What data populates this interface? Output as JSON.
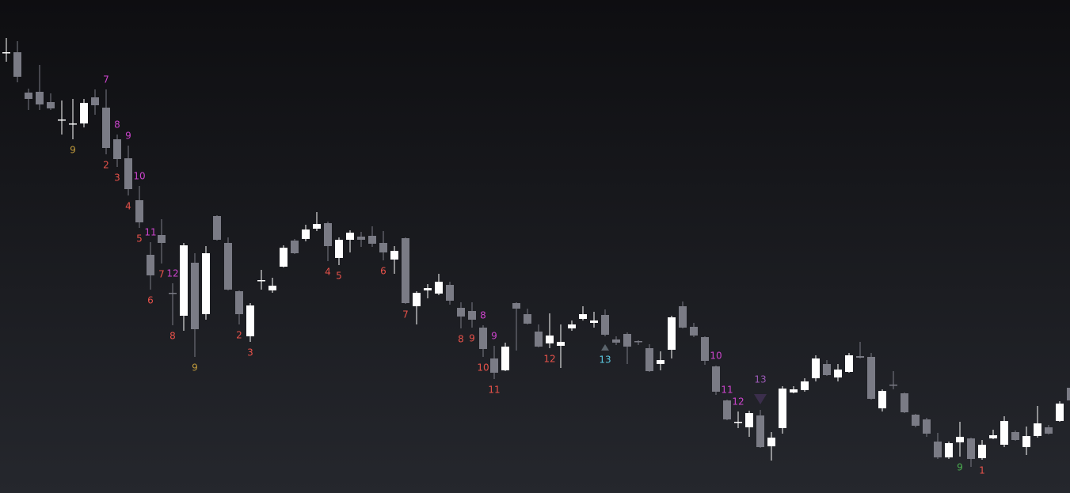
{
  "chart_data": {
    "type": "candlestick",
    "up_color": "#ffffff",
    "down_color": "#7a7b85",
    "ylim": [
      0,
      623
    ],
    "open": [
      556,
      557,
      506,
      507,
      494,
      472,
      467,
      467,
      500,
      487,
      447,
      423,
      370,
      301,
      326,
      253,
      224,
      291,
      226,
      350,
      316,
      255,
      198,
      268,
      256,
      286,
      319,
      321,
      334,
      341,
      297,
      320,
      324,
      325,
      316,
      295,
      322,
      236,
      256,
      252,
      263,
      234,
      230,
      209,
      170,
      155,
      240,
      226,
      204,
      189,
      186,
      208,
      220,
      215,
      225,
      194,
      201,
      192,
      183,
      163,
      181,
      236,
      210,
      197,
      160,
      117,
      90,
      83,
      98,
      59,
      82,
      127,
      130,
      145,
      163,
      146,
      153,
      173,
      172,
      107,
      137,
      126,
      99,
      93,
      65,
      45,
      64,
      69,
      44,
      69,
      61,
      77,
      58,
      72,
      83,
      91,
      133
    ],
    "high": [
      575,
      571,
      511,
      541,
      505,
      496,
      498,
      498,
      510,
      510,
      453,
      439,
      388,
      317,
      346,
      265,
      316,
      303,
      312,
      351,
      323,
      256,
      240,
      282,
      272,
      313,
      321,
      339,
      355,
      343,
      323,
      332,
      330,
      337,
      331,
      312,
      323,
      255,
      264,
      277,
      267,
      241,
      241,
      212,
      186,
      190,
      241,
      233,
      213,
      227,
      213,
      218,
      236,
      229,
      232,
      198,
      203,
      193,
      188,
      179,
      224,
      242,
      215,
      198,
      161,
      118,
      103,
      104,
      105,
      77,
      135,
      135,
      145,
      174,
      168,
      163,
      177,
      191,
      177,
      131,
      154,
      127,
      100,
      95,
      76,
      65,
      90,
      70,
      67,
      80,
      97,
      79,
      84,
      110,
      86,
      116,
      147
    ],
    "low": [
      545,
      519,
      484,
      484,
      484,
      453,
      447,
      462,
      478,
      428,
      412,
      376,
      335,
      257,
      290,
      212,
      205,
      172,
      219,
      319,
      256,
      213,
      191,
      257,
      253,
      285,
      302,
      318,
      331,
      293,
      288,
      304,
      311,
      311,
      294,
      277,
      239,
      213,
      246,
      250,
      238,
      208,
      209,
      172,
      144,
      154,
      180,
      213,
      184,
      183,
      158,
      205,
      218,
      209,
      198,
      187,
      163,
      187,
      153,
      155,
      170,
      208,
      197,
      162,
      124,
      92,
      82,
      71,
      57,
      41,
      75,
      126,
      128,
      141,
      148,
      141,
      152,
      170,
      118,
      103,
      131,
      101,
      83,
      71,
      43,
      43,
      46,
      33,
      42,
      68,
      58,
      66,
      48,
      70,
      74,
      90,
      116
    ],
    "close": [
      557,
      526,
      498,
      491,
      486,
      472,
      467,
      493,
      490,
      436,
      422,
      384,
      342,
      275,
      316,
      252,
      313,
      207,
      303,
      320,
      257,
      226,
      237,
      269,
      262,
      310,
      303,
      333,
      340,
      312,
      320,
      329,
      320,
      315,
      304,
      306,
      240,
      253,
      259,
      267,
      243,
      223,
      219,
      182,
      152,
      185,
      233,
      214,
      185,
      199,
      191,
      213,
      226,
      218,
      200,
      190,
      185,
      191,
      154,
      168,
      222,
      209,
      199,
      167,
      128,
      93,
      90,
      101,
      58,
      70,
      132,
      131,
      141,
      170,
      149,
      156,
      174,
      171,
      119,
      129,
      136,
      102,
      85,
      75,
      45,
      63,
      71,
      43,
      61,
      73,
      91,
      67,
      72,
      88,
      75,
      113,
      117
    ],
    "annotations": [
      {
        "index": 9,
        "text": "7",
        "color": "#cc44cc",
        "position": "above"
      },
      {
        "index": 10,
        "text": "8",
        "color": "#cc44cc",
        "position": "above"
      },
      {
        "index": 11,
        "text": "9",
        "color": "#cc44cc",
        "position": "above"
      },
      {
        "index": 12,
        "text": "10",
        "color": "#cc44cc",
        "position": "above"
      },
      {
        "index": 13,
        "text": "11",
        "color": "#cc44cc",
        "position": "above"
      },
      {
        "index": 15,
        "text": "12",
        "color": "#cc44cc",
        "position": "above"
      },
      {
        "index": 9,
        "text": "2",
        "color": "#e8524a",
        "position": "below"
      },
      {
        "index": 10,
        "text": "3",
        "color": "#e8524a",
        "position": "below"
      },
      {
        "index": 11,
        "text": "4",
        "color": "#e8524a",
        "position": "below"
      },
      {
        "index": 12,
        "text": "5",
        "color": "#e8524a",
        "position": "below"
      },
      {
        "index": 13,
        "text": "6",
        "color": "#e8524a",
        "position": "below"
      },
      {
        "index": 14,
        "text": "7",
        "color": "#e8524a",
        "position": "below"
      },
      {
        "index": 15,
        "text": "8",
        "color": "#e8524a",
        "position": "below"
      },
      {
        "index": 6,
        "text": "9",
        "color": "#c09a3c",
        "position": "below"
      },
      {
        "index": 17,
        "text": "9",
        "color": "#c09a3c",
        "position": "below"
      },
      {
        "index": 21,
        "text": "2",
        "color": "#e8524a",
        "position": "below"
      },
      {
        "index": 22,
        "text": "3",
        "color": "#e8524a",
        "position": "below"
      },
      {
        "index": 29,
        "text": "4",
        "color": "#e8524a",
        "position": "below"
      },
      {
        "index": 30,
        "text": "5",
        "color": "#e8524a",
        "position": "below"
      },
      {
        "index": 34,
        "text": "6",
        "color": "#e8524a",
        "position": "below"
      },
      {
        "index": 36,
        "text": "7",
        "color": "#e8524a",
        "position": "below"
      },
      {
        "index": 41,
        "text": "8",
        "color": "#e8524a",
        "position": "below"
      },
      {
        "index": 42,
        "text": "9",
        "color": "#e8524a",
        "position": "below"
      },
      {
        "index": 43,
        "text": "10",
        "color": "#e8524a",
        "position": "below"
      },
      {
        "index": 44,
        "text": "11",
        "color": "#e8524a",
        "position": "below"
      },
      {
        "index": 49,
        "text": "12",
        "color": "#e8524a",
        "position": "below"
      },
      {
        "index": 43,
        "text": "8",
        "color": "#cc44cc",
        "position": "above"
      },
      {
        "index": 44,
        "text": "9",
        "color": "#cc44cc",
        "position": "above"
      },
      {
        "index": 54,
        "text": "13",
        "color": "#5bc8e0",
        "position": "below",
        "marker": "triangle-up",
        "marker_color": "#5a646c"
      },
      {
        "index": 64,
        "text": "10",
        "color": "#cc44cc",
        "position": "above"
      },
      {
        "index": 65,
        "text": "11",
        "color": "#cc44cc",
        "position": "above"
      },
      {
        "index": 66,
        "text": "12",
        "color": "#cc44cc",
        "position": "above"
      },
      {
        "index": 68,
        "text": "13",
        "color": "#9b59b6",
        "position": "above",
        "marker": "triangle-down",
        "marker_color": "#3b2e4c"
      },
      {
        "index": 86,
        "text": "9",
        "color": "#4caf50",
        "position": "below"
      },
      {
        "index": 88,
        "text": "1",
        "color": "#e8524a",
        "position": "below"
      }
    ]
  }
}
